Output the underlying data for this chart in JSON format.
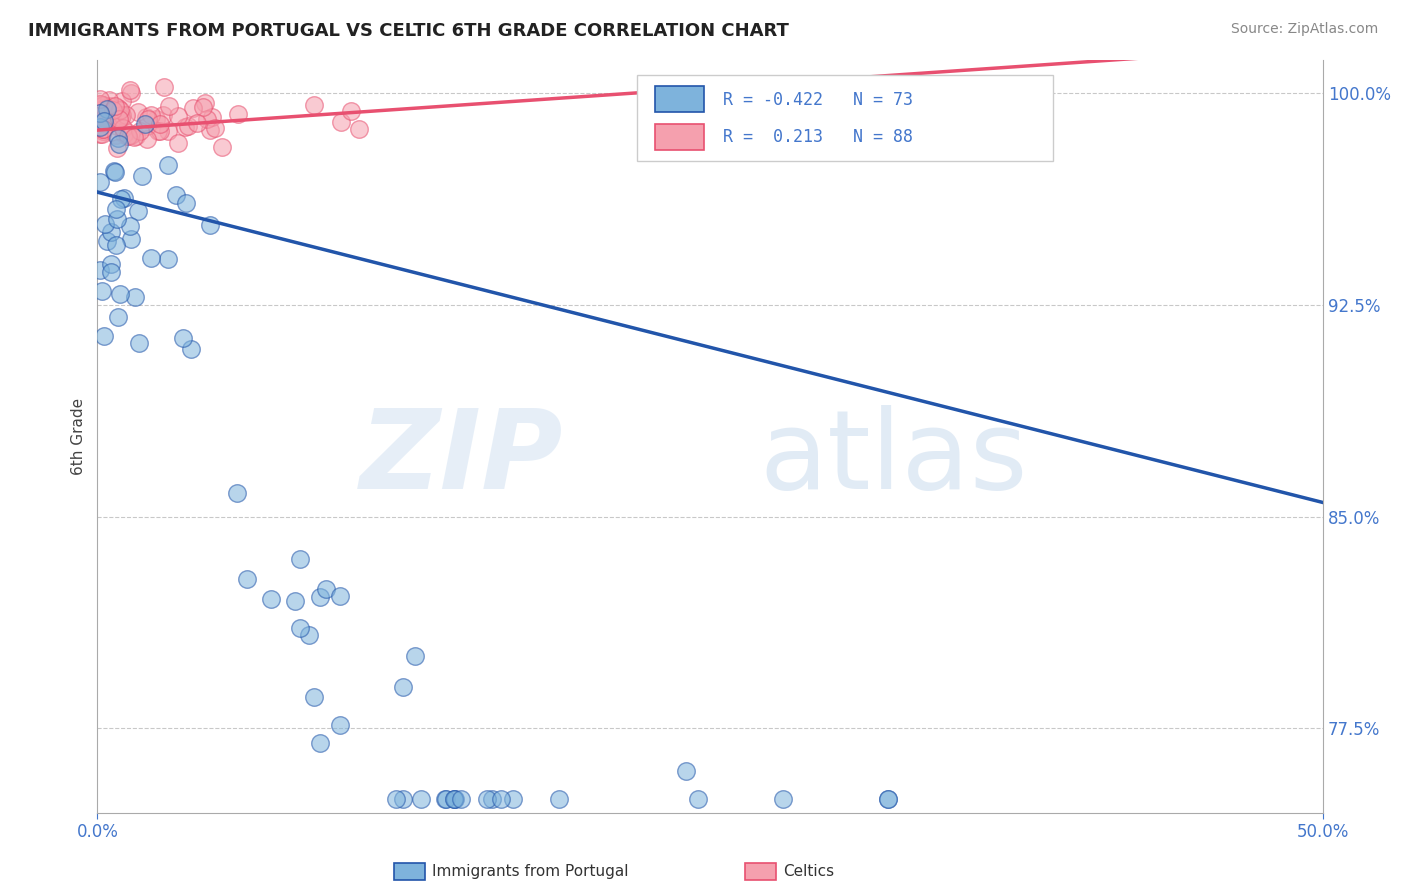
{
  "title": "IMMIGRANTS FROM PORTUGAL VS CELTIC 6TH GRADE CORRELATION CHART",
  "source_text": "Source: ZipAtlas.com",
  "xlabel_blue": "Immigrants from Portugal",
  "xlabel_pink": "Celtics",
  "ylabel": "6th Grade",
  "xmin": 0.0,
  "xmax": 0.5,
  "ymin": 0.745,
  "ymax": 1.012,
  "yticks": [
    0.775,
    0.85,
    0.925,
    1.0
  ],
  "ytick_labels": [
    "77.5%",
    "85.0%",
    "92.5%",
    "100.0%"
  ],
  "xticks": [
    0.0,
    0.5
  ],
  "xtick_labels": [
    "0.0%",
    "50.0%"
  ],
  "legend_r_blue": "-0.422",
  "legend_n_blue": "73",
  "legend_r_pink": "0.213",
  "legend_n_pink": "88",
  "blue_color": "#7EB3DC",
  "pink_color": "#F5A0AE",
  "trend_blue_color": "#2255AA",
  "trend_pink_color": "#E85070",
  "grid_color": "#BBBBBB",
  "title_color": "#222222",
  "source_color": "#888888",
  "tick_color": "#4477CC",
  "ylabel_color": "#444444"
}
